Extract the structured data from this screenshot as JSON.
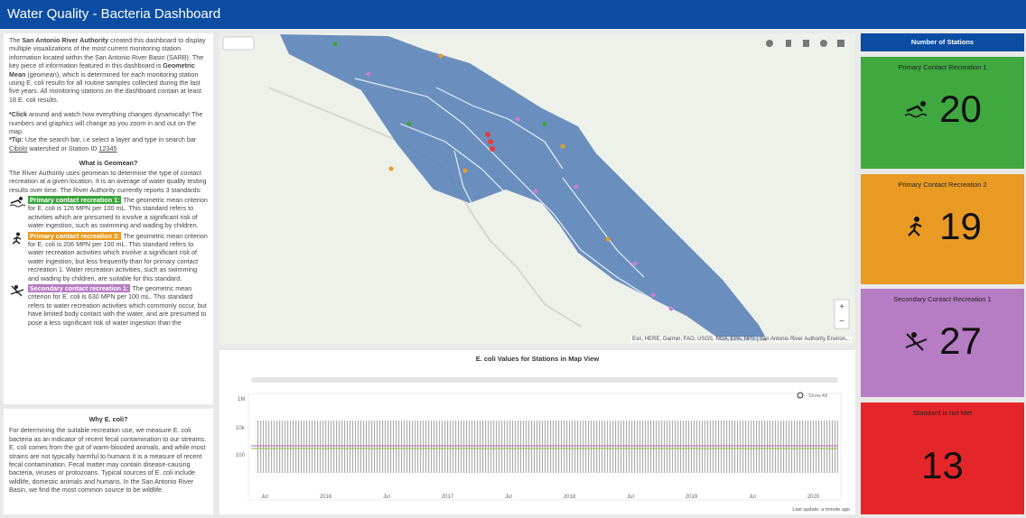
{
  "header": {
    "title": "Water Quality - Bacteria Dashboard"
  },
  "about": {
    "intro": [
      "The ",
      "San Antonio River Authority",
      " created this dashboard to display multiple visualizations of the most current monitoring station information located within the San Antonio River Basin (SARB). The key piece of information featured in this dashboard is ",
      "Geometric Mean",
      " (geomean), which is determined for each monitoring station using E. coli results for all routine samples collected during the last five years. All monitoring stations on the dashboard contain at least 18 E. coli results."
    ],
    "click": [
      "*Click",
      " around and watch how everything changes dynamically! The numbers and graphics will change as you zoom in and out on the map."
    ],
    "tip": [
      "*Tip:",
      " Use the search bar, i.e select a layer and type in search bar ",
      "Cibolo",
      " watershed or Station ID ",
      "12345"
    ],
    "geomean_heading": "What is Geomean?",
    "geomean_text": "The River Authority uses geomean to determine the type of contact recreation at a given location. It is an average of water quality testing results over time. The River Authority currently reports 3 standards:",
    "standards": [
      {
        "label": "Primary contact recreation 1:",
        "text": " The geometric mean criterion for E. coli is 126 MPN per 100 mL. This standard refers to activities which are presumed to involve a significant risk of water ingestion, such as swimming and wading by children."
      },
      {
        "label": "Primary contact recreation 2:",
        "text": " The geometric mean criterion for E. coli is 206 MPN per 100 mL. This standard refers to water recreation activities which involve a significant risk of water ingestion, but less frequently than for primary contact recreation 1. Water recreation activities, such as swimming and wading by children, are suitable for this standard."
      },
      {
        "label": "Secondary contact recreation 1:",
        "text": " The geometric mean criterion for E. coli is 630 MPN per 100 mL. This standard refers to water recreation activities which commonly occur, but have limited body contact with the water, and are presumed to pose a less significant risk of water ingestion than the"
      }
    ]
  },
  "why": {
    "heading": "Why E. coli?",
    "text": "For determining the suitable recreation use, we measure E. coli bacteria as an indicator of recent fecal contamination to our streams. E. coli comes from the gut of warm-blooded animals, and while most strains are not typically harmful to humans it is a measure of recent fecal contamination. Fecal matter may contain disease-causing bacteria, viruses or protozoans.  Typical sources of E. coli include wildlife, domestic animals and humans. In the San Antonio River Basin, we find the most common source to be wildlife."
  },
  "map": {
    "attribution": "Esri, HERE, Garmin, FAO, USGS, NGA, EPA, NPS | San Antonio River Authority Environ..."
  },
  "chart": {
    "title": "E. coli Values for Stations in Map View",
    "show_all": "Show All",
    "y_labels": [
      "1M",
      "10k",
      "100"
    ],
    "x_labels": [
      "Jul",
      "2016",
      "Jul",
      "2017",
      "Jul",
      "2018",
      "Jul",
      "2019",
      "Jul",
      "2020"
    ],
    "last_update": "Last update: a minute ago"
  },
  "stations": {
    "heading": "Number of Stations",
    "cards": [
      {
        "label": "Primary Contact Recreation 1",
        "count": 20
      },
      {
        "label": "Primary Contact Recreation 2",
        "count": 19
      },
      {
        "label": "Secondary Contact Recreation 1",
        "count": 27
      },
      {
        "label": "Standard is not Met",
        "count": 13
      }
    ]
  }
}
